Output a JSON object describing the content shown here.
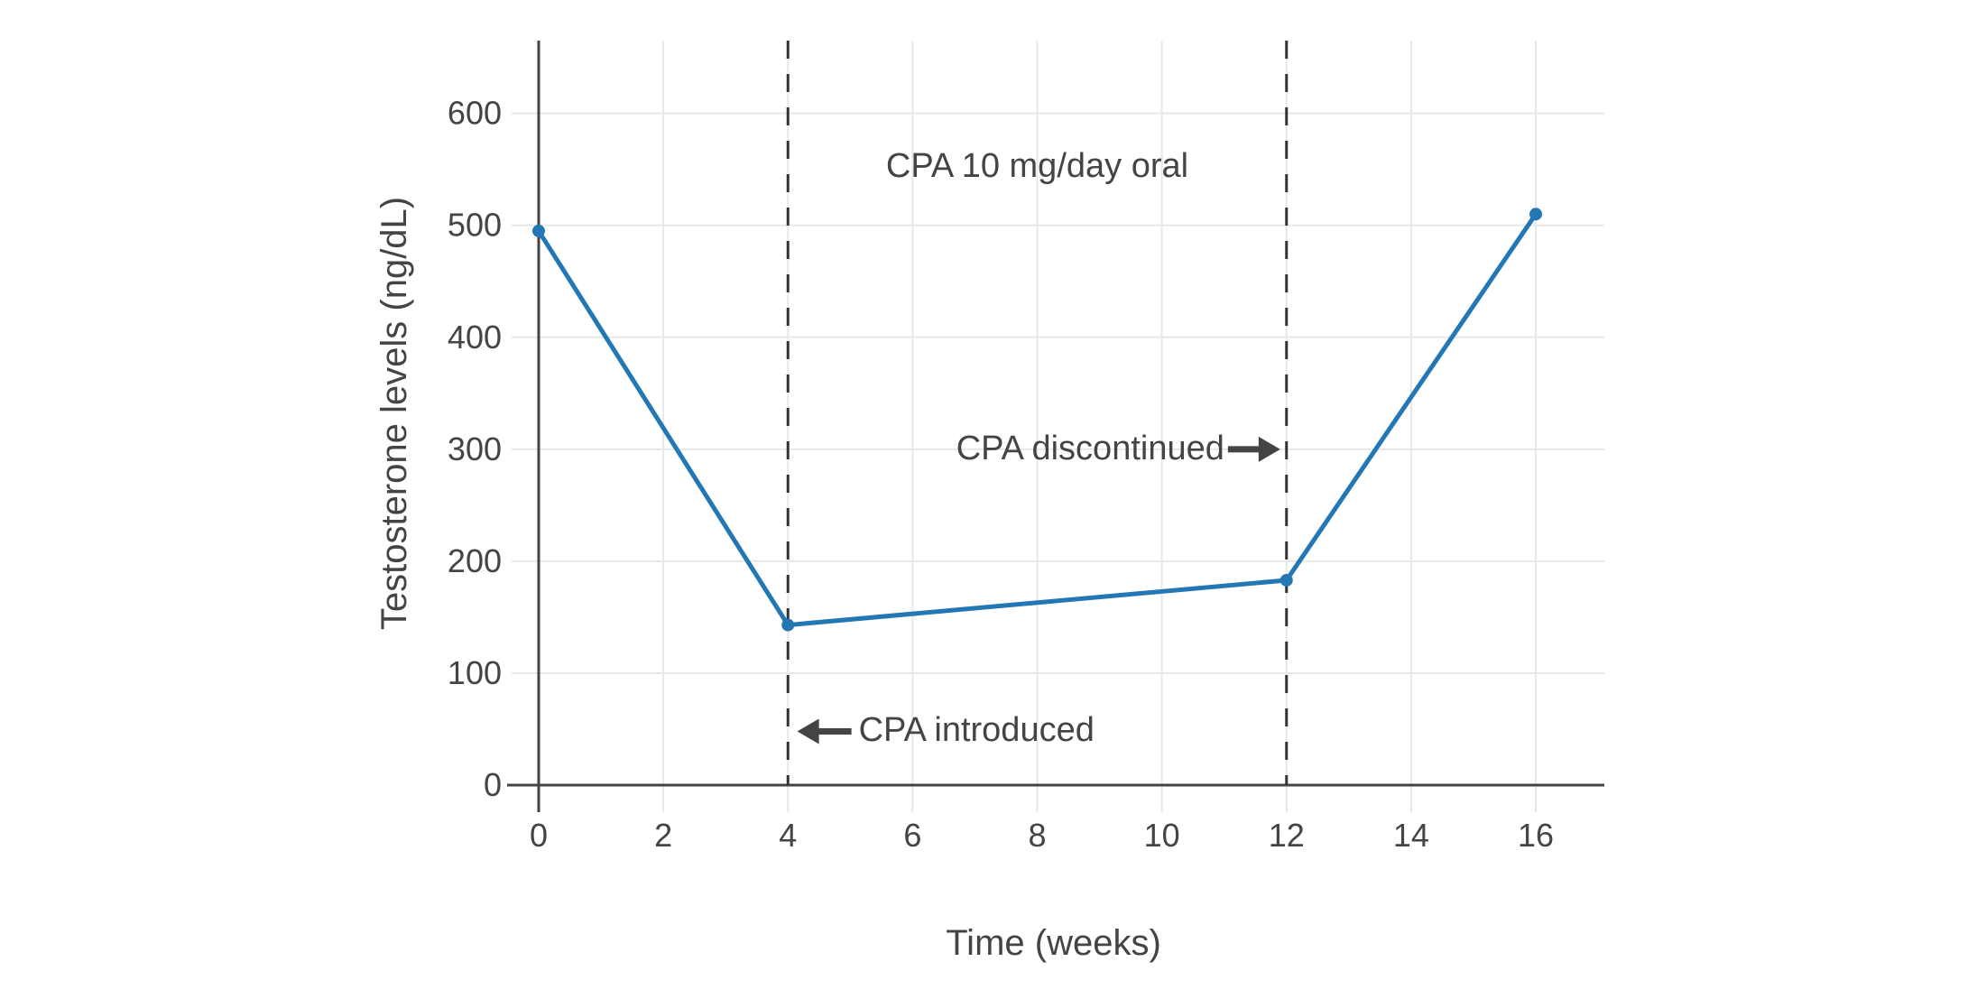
{
  "chart_data": {
    "type": "line",
    "xlabel": "Time (weeks)",
    "ylabel": "Testosterone levels (ng/dL)",
    "x": [
      0,
      4,
      12,
      16
    ],
    "y": [
      495,
      143,
      183,
      510
    ],
    "series_name": "Testosterone levels",
    "xticks": [
      0,
      2,
      4,
      6,
      8,
      10,
      12,
      14,
      16
    ],
    "yticks": [
      0,
      100,
      200,
      300,
      400,
      500,
      600
    ],
    "xlim": [
      0,
      17.1
    ],
    "ylim": [
      0,
      665
    ],
    "grid": true,
    "legend_position": "none",
    "vlines": [
      {
        "x": 4,
        "style": "dashed"
      },
      {
        "x": 12,
        "style": "dashed"
      }
    ],
    "annotations": [
      {
        "id": "treatment-label",
        "text": "CPA 10 mg/day oral",
        "x": 8,
        "y": 552,
        "arrow": "none"
      },
      {
        "id": "cpa-discontinued",
        "text": "CPA discontinued",
        "x": 11.9,
        "y": 300,
        "arrow": "right"
      },
      {
        "id": "cpa-introduced",
        "text": "CPA introduced",
        "x": 4.15,
        "y": 48,
        "arrow": "left"
      }
    ],
    "colors": {
      "line": "#2277b4",
      "marker": "#2277b4",
      "axis": "#444444",
      "grid": "#e8e8e8",
      "dashed_line": "#333333",
      "text": "#444444",
      "arrow": "#444444"
    }
  }
}
